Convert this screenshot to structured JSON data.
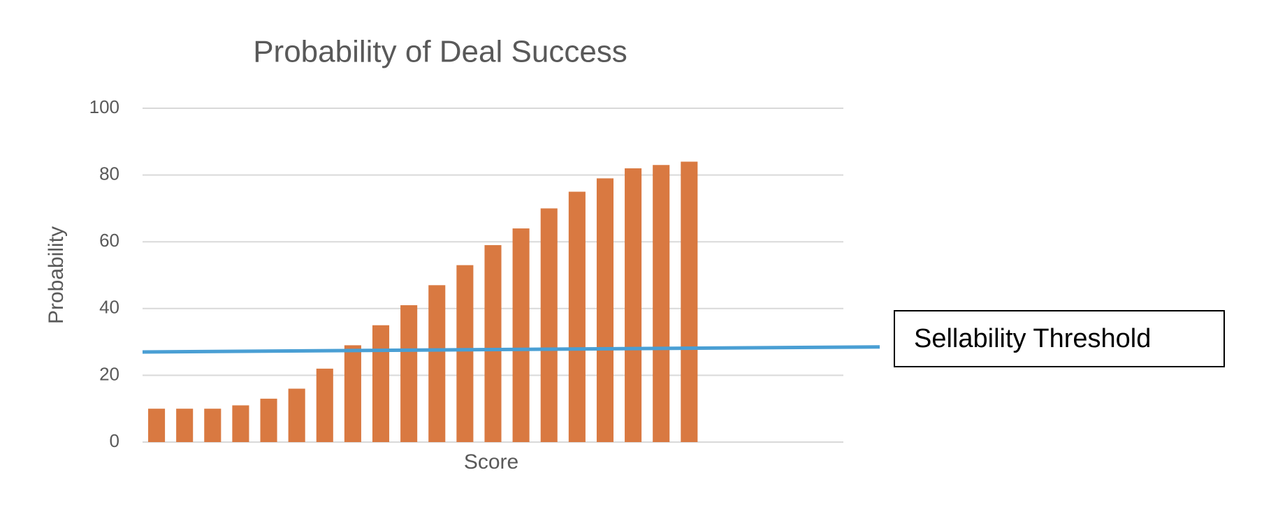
{
  "chart_data": {
    "type": "bar",
    "title": "Probability of Deal Success",
    "x_label": "Score",
    "y_label": "Probability",
    "categories": [
      null,
      null,
      null,
      null,
      null,
      null,
      null,
      null,
      null,
      null,
      null,
      null,
      null,
      null,
      null,
      null,
      null,
      null,
      null,
      null,
      null,
      null,
      null,
      null,
      null
    ],
    "values": [
      10,
      10,
      10,
      11,
      13,
      16,
      22,
      29,
      35,
      41,
      47,
      53,
      59,
      64,
      70,
      75,
      79,
      82,
      83,
      84,
      null,
      null,
      null,
      null,
      null
    ],
    "color": "#d97941",
    "ylim": [
      0,
      100
    ],
    "yticks": [
      0,
      20,
      40,
      60,
      80,
      100
    ],
    "grid": true,
    "annotations": [
      {
        "text": "Sellability Threshold",
        "y_start": 27,
        "y_end": 28.5,
        "color": "#4a9fd4"
      }
    ]
  }
}
